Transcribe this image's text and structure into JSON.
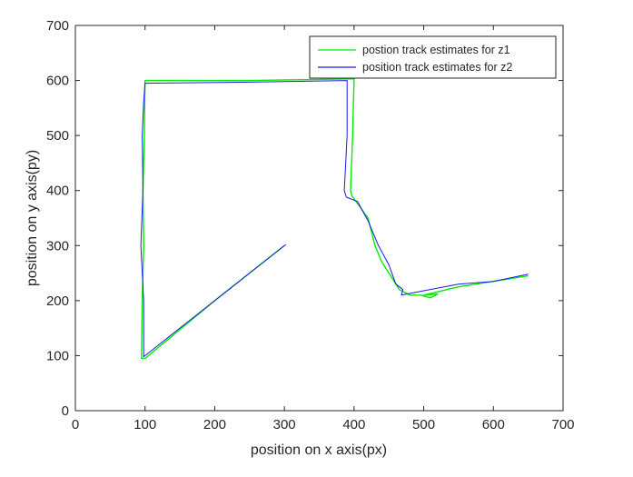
{
  "chart_data": {
    "type": "line",
    "title": "",
    "xlabel": "position on x axis(px)",
    "ylabel": "position on y axis(py)",
    "xlim": [
      0,
      700
    ],
    "ylim": [
      0,
      700
    ],
    "xticks": [
      0,
      100,
      200,
      300,
      400,
      500,
      600,
      700
    ],
    "yticks": [
      0,
      100,
      200,
      300,
      400,
      500,
      600,
      700
    ],
    "grid": false,
    "legend_position": "top-right",
    "series": [
      {
        "name": "postion track estimates for z1",
        "color": "#00ee00",
        "x": [
          300,
          200,
          100,
          95,
          96,
          98,
          97,
          99,
          100,
          250,
          400,
          398,
          395,
          397,
          400,
          420,
          430,
          440,
          455,
          465,
          480,
          495,
          510,
          520,
          500,
          550,
          600,
          650
        ],
        "y": [
          300,
          200,
          95,
          95,
          200,
          300,
          400,
          500,
          600,
          600,
          603,
          500,
          400,
          390,
          385,
          350,
          300,
          270,
          240,
          220,
          210,
          210,
          205,
          212,
          210,
          225,
          235,
          245
        ]
      },
      {
        "name": "position track estimates for z2",
        "color": "#1a1aee",
        "x": [
          302,
          200,
          98,
          98,
          94,
          97,
          96,
          98,
          100,
          250,
          390,
          390,
          386,
          389,
          405,
          420,
          435,
          450,
          460,
          470,
          468,
          500,
          550,
          600,
          650
        ],
        "y": [
          302,
          200,
          98,
          200,
          300,
          400,
          500,
          560,
          595,
          597,
          600,
          500,
          400,
          388,
          380,
          345,
          300,
          265,
          230,
          220,
          210,
          218,
          230,
          235,
          248
        ]
      }
    ]
  }
}
